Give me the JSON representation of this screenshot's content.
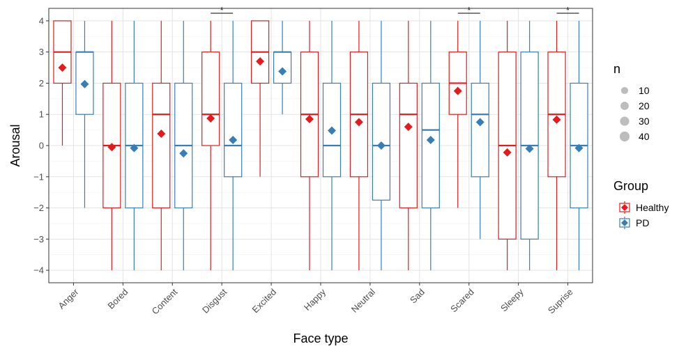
{
  "chart_data": {
    "type": "box",
    "xlabel": "Face type",
    "ylabel": "Arousal",
    "ylim": [
      -4.4,
      4.4
    ],
    "y_ticks": [
      -4,
      -3,
      -2,
      -1,
      0,
      1,
      2,
      3,
      4
    ],
    "categories": [
      "Anger",
      "Bored",
      "Content",
      "Disgust",
      "Excited",
      "Happy",
      "Neutral",
      "Sad",
      "Scared",
      "Sleepy",
      "Suprise"
    ],
    "significance": [
      {
        "category": "Disgust",
        "label": "*"
      },
      {
        "category": "Scared",
        "label": "*"
      },
      {
        "category": "Suprise",
        "label": "*"
      }
    ],
    "series": [
      {
        "name": "Healthy",
        "color": "#e41a1c",
        "boxes": [
          {
            "min": 0,
            "q1": 2,
            "median": 3,
            "q3": 4,
            "max": 4,
            "mean": 2.5
          },
          {
            "min": -4,
            "q1": -2,
            "median": 0,
            "q3": 2,
            "max": 4,
            "mean": -0.05
          },
          {
            "min": -4,
            "q1": -2,
            "median": 1,
            "q3": 2,
            "max": 4,
            "mean": 0.38
          },
          {
            "min": -4,
            "q1": 0,
            "median": 1,
            "q3": 3,
            "max": 4,
            "mean": 0.87
          },
          {
            "min": -1,
            "q1": 2,
            "median": 3,
            "q3": 4,
            "max": 4,
            "mean": 2.7
          },
          {
            "min": -4,
            "q1": -1,
            "median": 1,
            "q3": 3,
            "max": 4,
            "mean": 0.85
          },
          {
            "min": -4,
            "q1": -1,
            "median": 1,
            "q3": 3,
            "max": 4,
            "mean": 0.75
          },
          {
            "min": -4,
            "q1": -2,
            "median": 1,
            "q3": 2,
            "max": 4,
            "mean": 0.6
          },
          {
            "min": -2,
            "q1": 1,
            "median": 2,
            "q3": 3,
            "max": 4,
            "mean": 1.75
          },
          {
            "min": -4,
            "q1": -3,
            "median": 0,
            "q3": 3,
            "max": 4,
            "mean": -0.22
          },
          {
            "min": -4,
            "q1": -1,
            "median": 1,
            "q3": 3,
            "max": 4,
            "mean": 0.83
          }
        ]
      },
      {
        "name": "PD",
        "color": "#377eb8",
        "boxes": [
          {
            "min": -2,
            "q1": 1,
            "median": 3,
            "q3": 3,
            "max": 4,
            "mean": 1.97
          },
          {
            "min": -4,
            "q1": -2,
            "median": 0,
            "q3": 2,
            "max": 4,
            "mean": -0.08
          },
          {
            "min": -4,
            "q1": -2,
            "median": 0,
            "q3": 2,
            "max": 4,
            "mean": -0.25
          },
          {
            "min": -4,
            "q1": -1,
            "median": 0,
            "q3": 2,
            "max": 4,
            "mean": 0.18
          },
          {
            "min": 1,
            "q1": 2,
            "median": 3,
            "q3": 3,
            "max": 4,
            "mean": 2.38
          },
          {
            "min": -4,
            "q1": -1,
            "median": 0,
            "q3": 2,
            "max": 4,
            "mean": 0.48
          },
          {
            "min": -4,
            "q1": -1.75,
            "median": 0,
            "q3": 2,
            "max": 4,
            "mean": 0.0
          },
          {
            "min": -4,
            "q1": -2,
            "median": 0.5,
            "q3": 2,
            "max": 4,
            "mean": 0.18
          },
          {
            "min": -3,
            "q1": -1,
            "median": 1,
            "q3": 2,
            "max": 4,
            "mean": 0.75
          },
          {
            "min": -4,
            "q1": -3,
            "median": 0,
            "q3": 3,
            "max": 4,
            "mean": -0.1
          },
          {
            "min": -4,
            "q1": -2,
            "median": 0,
            "q3": 2,
            "max": 4,
            "mean": -0.08
          }
        ]
      }
    ],
    "size_legend": {
      "title": "n",
      "values": [
        10,
        20,
        30,
        40
      ]
    },
    "group_legend": {
      "title": "Group",
      "position": "right"
    },
    "grid": true
  }
}
